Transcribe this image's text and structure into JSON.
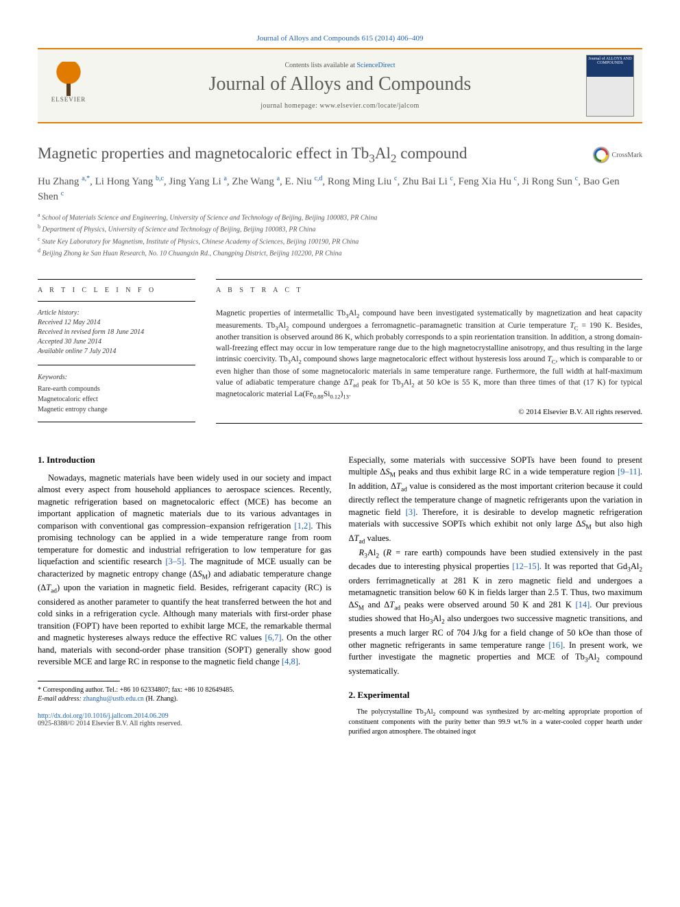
{
  "citation": "Journal of Alloys and Compounds 615 (2014) 406–409",
  "header": {
    "contents_prefix": "Contents lists available at ",
    "contents_link": "ScienceDirect",
    "journal_name": "Journal of Alloys and Compounds",
    "homepage_prefix": "journal homepage: ",
    "homepage": "www.elsevier.com/locate/jalcom",
    "publisher": "ELSEVIER",
    "cover_text": "Journal of ALLOYS AND COMPOUNDS"
  },
  "title_html": "Magnetic properties and magnetocaloric effect in Tb<sub>3</sub>Al<sub>2</sub> compound",
  "crossmark": "CrossMark",
  "authors_html": "Hu Zhang <sup>a,*</sup>, Li Hong Yang <sup>b,c</sup>, Jing Yang Li <sup>a</sup>, Zhe Wang <sup>a</sup>, E. Niu <sup>c,d</sup>, Rong Ming Liu <sup>c</sup>, Zhu Bai Li <sup>c</sup>, Feng Xia Hu <sup>c</sup>, Ji Rong Sun <sup>c</sup>, Bao Gen Shen <sup>c</sup>",
  "affiliations": [
    {
      "sup": "a",
      "text": "School of Materials Science and Engineering, University of Science and Technology of Beijing, Beijing 100083, PR China"
    },
    {
      "sup": "b",
      "text": "Department of Physics, University of Science and Technology of Beijing, Beijing 100083, PR China"
    },
    {
      "sup": "c",
      "text": "State Key Laboratory for Magnetism, Institute of Physics, Chinese Academy of Sciences, Beijing 100190, PR China"
    },
    {
      "sup": "d",
      "text": "Beijing Zhong ke San Huan Research, No. 10 Chuangxin Rd., Changping District, Beijing 102200, PR China"
    }
  ],
  "article_info": {
    "heading": "A R T I C L E   I N F O",
    "history_label": "Article history:",
    "history": [
      "Received 12 May 2014",
      "Received in revised form 18 June 2014",
      "Accepted 30 June 2014",
      "Available online 7 July 2014"
    ],
    "keywords_label": "Keywords:",
    "keywords": [
      "Rare-earth compounds",
      "Magnetocaloric effect",
      "Magnetic entropy change"
    ]
  },
  "abstract": {
    "heading": "A B S T R A C T",
    "body_html": "Magnetic properties of intermetallic Tb<sub>3</sub>Al<sub>2</sub> compound have been investigated systematically by magnetization and heat capacity measurements. Tb<sub>3</sub>Al<sub>2</sub> compound undergoes a ferromagnetic–paramagnetic transition at Curie temperature <i>T</i><sub>C</sub> = 190 K. Besides, another transition is observed around 86 K, which probably corresponds to a spin reorientation transition. In addition, a strong domain-wall-freezing effect may occur in low temperature range due to the high magnetocrystalline anisotropy, and thus resulting in the large intrinsic coercivity. Tb<sub>3</sub>Al<sub>2</sub> compound shows large magnetocaloric effect without hysteresis loss around <i>T</i><sub>C</sub>, which is comparable to or even higher than those of some magnetocaloric materials in same temperature range. Furthermore, the full width at half-maximum value of adiabatic temperature change Δ<i>T</i><sub>ad</sub> peak for Tb<sub>3</sub>Al<sub>2</sub> at 50 kOe is 55 K, more than three times of that (17 K) for typical magnetocaloric material La(Fe<sub>0.88</sub>Si<sub>0.12</sub>)<sub>13</sub>.",
    "copyright": "© 2014 Elsevier B.V. All rights reserved."
  },
  "sections": {
    "intro_title": "1. Introduction",
    "intro_left_html": "Nowadays, magnetic materials have been widely used in our society and impact almost every aspect from household appliances to aerospace sciences. Recently, magnetic refrigeration based on magnetocaloric effect (MCE) has become an important application of magnetic materials due to its various advantages in comparison with conventional gas compression–expansion refrigeration <span class=\"ref\">[1,2]</span>. This promising technology can be applied in a wide temperature range from room temperature for domestic and industrial refrigeration to low temperature for gas liquefaction and scientific research <span class=\"ref\">[3–5]</span>. The magnitude of MCE usually can be characterized by magnetic entropy change (Δ<i>S</i><sub>M</sub>) and adiabatic temperature change (Δ<i>T</i><sub>ad</sub>) upon the variation in magnetic field. Besides, refrigerant capacity (RC) is considered as another parameter to quantify the heat transferred between the hot and cold sinks in a refrigeration cycle. Although many materials with first-order phase transition (FOPT) have been reported to exhibit large MCE, the remarkable thermal and magnetic hystereses always reduce the effective RC values <span class=\"ref\">[6,7]</span>. On the other hand, materials with second-order phase transition (SOPT) generally show good reversible MCE and large RC in response to the magnetic field change <span class=\"ref\">[4,8]</span>.",
    "intro_right_top_html": "Especially, some materials with successive SOPTs have been found to present multiple Δ<i>S</i><sub>M</sub> peaks and thus exhibit large RC in a wide temperature region <span class=\"ref\">[9–11]</span>. In addition, Δ<i>T</i><sub>ad</sub> value is considered as the most important criterion because it could directly reflect the temperature change of magnetic refrigerants upon the variation in magnetic field <span class=\"ref\">[3]</span>. Therefore, it is desirable to develop magnetic refrigeration materials with successive SOPTs which exhibit not only large Δ<i>S</i><sub>M</sub> but also high Δ<i>T</i><sub>ad</sub> values.",
    "intro_right_mid_html": "<i>R</i><sub>3</sub>Al<sub>2</sub> (<i>R</i> = rare earth) compounds have been studied extensively in the past decades due to interesting physical properties <span class=\"ref\">[12–15]</span>. It was reported that Gd<sub>3</sub>Al<sub>2</sub> orders ferrimagnetically at 281 K in zero magnetic field and undergoes a metamagnetic transition below 60 K in fields larger than 2.5 T. Thus, two maximum Δ<i>S</i><sub>M</sub> and Δ<i>T</i><sub>ad</sub> peaks were observed around 50 K and 281 K <span class=\"ref\">[14]</span>. Our previous studies showed that Ho<sub>3</sub>Al<sub>2</sub> also undergoes two successive magnetic transitions, and presents a much larger RC of 704 J/kg for a field change of 50 kOe than those of other magnetic refrigerants in same temperature range <span class=\"ref\">[16]</span>. In present work, we further investigate the magnetic properties and MCE of Tb<sub>3</sub>Al<sub>2</sub> compound systematically.",
    "experimental_title": "2. Experimental",
    "experimental_html": "The polycrystalline Tb<sub>3</sub>Al<sub>2</sub> compound was synthesized by arc-melting appropriate proportion of constituent components with the purity better than 99.9 wt.% in a water-cooled copper hearth under purified argon atmosphere. The obtained ingot"
  },
  "footnotes": {
    "corr_html": "* Corresponding author. Tel.: +86 10 62334807; fax: +86 10 82649485.",
    "email_label": "E-mail address: ",
    "email": "zhanghu@ustb.edu.cn",
    "email_suffix": " (H. Zhang)."
  },
  "doi": {
    "link": "http://dx.doi.org/10.1016/j.jallcom.2014.06.209",
    "issn_line": "0925-8388/© 2014 Elsevier B.V. All rights reserved."
  },
  "colors": {
    "accent": "#e07b00",
    "link": "#1a5fb4",
    "heading": "#52514f"
  }
}
